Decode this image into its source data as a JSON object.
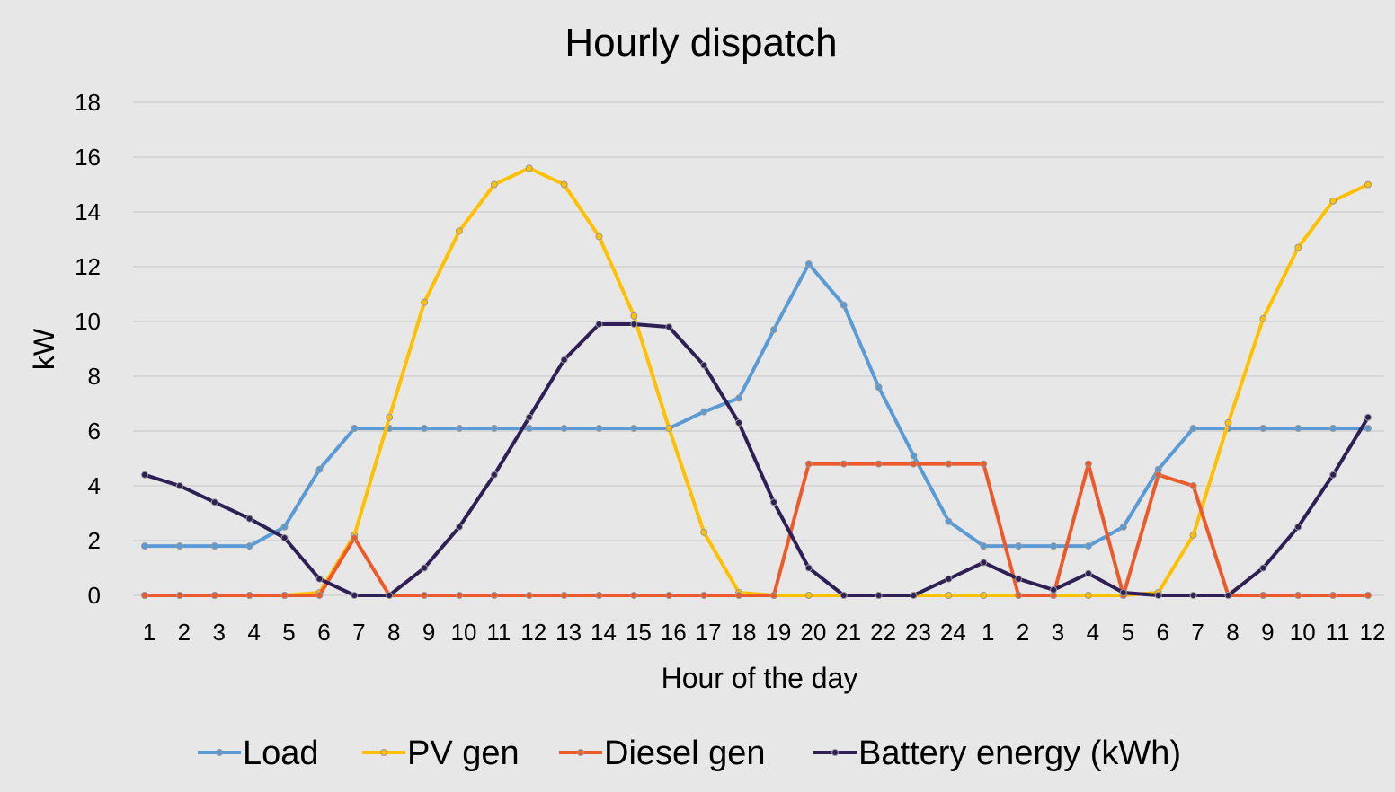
{
  "chart_data": {
    "type": "line",
    "title": "Hourly dispatch",
    "xlabel": "Hour of the day",
    "ylabel": "kW",
    "ylim": [
      0,
      18
    ],
    "yticks": [
      "0",
      "2",
      "4",
      "6",
      "8",
      "10",
      "12",
      "14",
      "16",
      "18"
    ],
    "categories": [
      "1",
      "2",
      "3",
      "4",
      "5",
      "6",
      "7",
      "8",
      "9",
      "10",
      "11",
      "12",
      "13",
      "14",
      "15",
      "16",
      "17",
      "18",
      "19",
      "20",
      "21",
      "22",
      "23",
      "24",
      "1",
      "2",
      "3",
      "4",
      "5",
      "6",
      "7",
      "8",
      "9",
      "10",
      "11",
      "12"
    ],
    "grid": true,
    "legend_position": "bottom",
    "series": [
      {
        "name": "Load",
        "color": "#5b9bd5",
        "values": [
          1.8,
          1.8,
          1.8,
          1.8,
          2.5,
          4.6,
          6.1,
          6.1,
          6.1,
          6.1,
          6.1,
          6.1,
          6.1,
          6.1,
          6.1,
          6.1,
          6.7,
          7.2,
          9.7,
          12.1,
          10.6,
          7.6,
          5.1,
          2.7,
          1.8,
          1.8,
          1.8,
          1.8,
          2.5,
          4.6,
          6.1,
          6.1,
          6.1,
          6.1,
          6.1,
          6.1
        ]
      },
      {
        "name": "PV gen",
        "color": "#ffc000",
        "values": [
          0,
          0,
          0,
          0,
          0,
          0.1,
          2.2,
          6.5,
          10.7,
          13.3,
          15.0,
          15.6,
          15.0,
          13.1,
          10.2,
          6.1,
          2.3,
          0.1,
          0,
          0,
          0,
          0,
          0,
          0,
          0,
          0,
          0,
          0,
          0,
          0.1,
          2.2,
          6.3,
          10.1,
          12.7,
          14.4,
          15.0
        ]
      },
      {
        "name": "Diesel gen",
        "color": "#ed5a2a",
        "values": [
          0,
          0,
          0,
          0,
          0,
          0,
          2.1,
          0,
          0,
          0,
          0,
          0,
          0,
          0,
          0,
          0,
          0,
          0,
          0,
          4.8,
          4.8,
          4.8,
          4.8,
          4.8,
          4.8,
          0,
          0,
          4.8,
          0,
          4.4,
          4.0,
          0,
          0,
          0,
          0,
          0
        ]
      },
      {
        "name": "Battery energy (kWh)",
        "color": "#2e1f55",
        "values": [
          4.4,
          4.0,
          3.4,
          2.8,
          2.1,
          0.6,
          0,
          0,
          1.0,
          2.5,
          4.4,
          6.5,
          8.6,
          9.9,
          9.9,
          9.8,
          8.4,
          6.3,
          3.4,
          1.0,
          0,
          0,
          0,
          0.6,
          1.2,
          0.6,
          0.2,
          0.8,
          0.1,
          0,
          0,
          0,
          1.0,
          2.5,
          4.4,
          6.5
        ]
      }
    ]
  }
}
